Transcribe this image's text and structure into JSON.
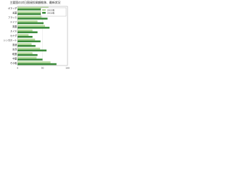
{
  "chart_data": {
    "type": "bar",
    "orientation": "horizontal",
    "title": "主要国の対日直接投資額推移、最新状況",
    "categories": [
      "オランダ",
      "米国",
      "フランス",
      "ドイツ",
      "英国",
      "スイス",
      "カナダ",
      "シンガポール",
      "香港",
      "台湾",
      "韓国",
      "中国",
      "その他"
    ],
    "series": [
      {
        "name": "2015年",
        "color": "#b5d99c",
        "values": [
          62,
          70,
          48,
          40,
          55,
          30,
          22,
          35,
          28,
          45,
          30,
          38,
          66
        ]
      },
      {
        "name": "2016年",
        "color": "#3a8a3a",
        "values": [
          80,
          88,
          60,
          52,
          64,
          40,
          30,
          46,
          36,
          58,
          40,
          50,
          78
        ]
      }
    ],
    "xlim": [
      0,
      100
    ],
    "xticks": [
      0,
      50,
      100
    ],
    "grid": true,
    "legend": "top-right"
  }
}
